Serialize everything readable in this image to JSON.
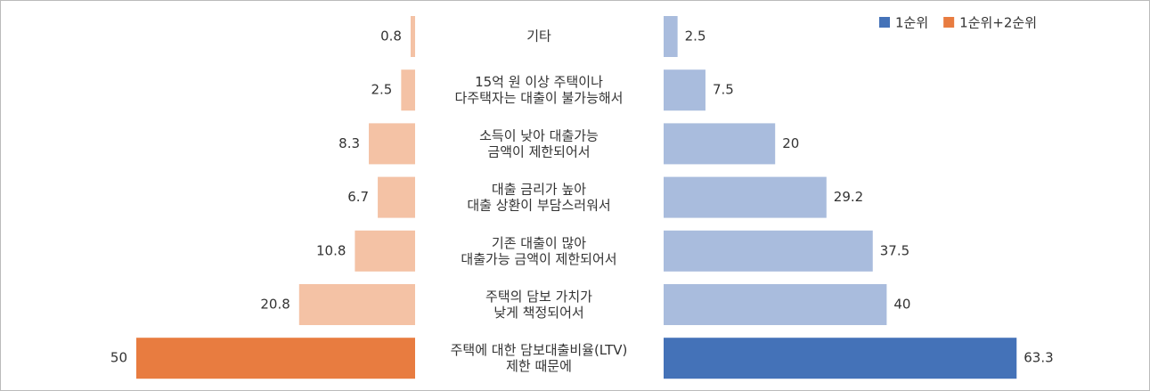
{
  "chart_data": {
    "type": "butterfly-bar",
    "categories": [
      "기타",
      "15억 원 이상 주택이나\n다주택자는 대출이 불가능해서",
      "소득이 낮아 대출가능\n금액이 제한되어서",
      "대출 금리가 높아\n대출 상환이 부담스러워서",
      "기존 대출이 많아\n대출가능 금액이 제한되어서",
      "주택의 담보 가치가\n낮게 책정되어서",
      "주택에 대한 담보대출비율(LTV)\n제한 때문에"
    ],
    "series": [
      {
        "name": "1순위",
        "side": "right",
        "color": "#4472b8",
        "colors": [
          "#a9bcdd",
          "#a9bcdd",
          "#a9bcdd",
          "#a9bcdd",
          "#a9bcdd",
          "#a9bcdd",
          "#4472b8"
        ],
        "values": [
          2.5,
          7.5,
          20,
          29.2,
          37.5,
          40,
          63.3
        ]
      },
      {
        "name": "1순위+2순위",
        "side": "left",
        "color": "#e87c40",
        "colors": [
          "#f4c2a5",
          "#f4c2a5",
          "#f4c2a5",
          "#f4c2a5",
          "#f4c2a5",
          "#f4c2a5",
          "#e87c40"
        ],
        "values": [
          0.8,
          2.5,
          8.3,
          6.7,
          10.8,
          20.8,
          50
        ]
      }
    ],
    "legend": "top-right"
  }
}
